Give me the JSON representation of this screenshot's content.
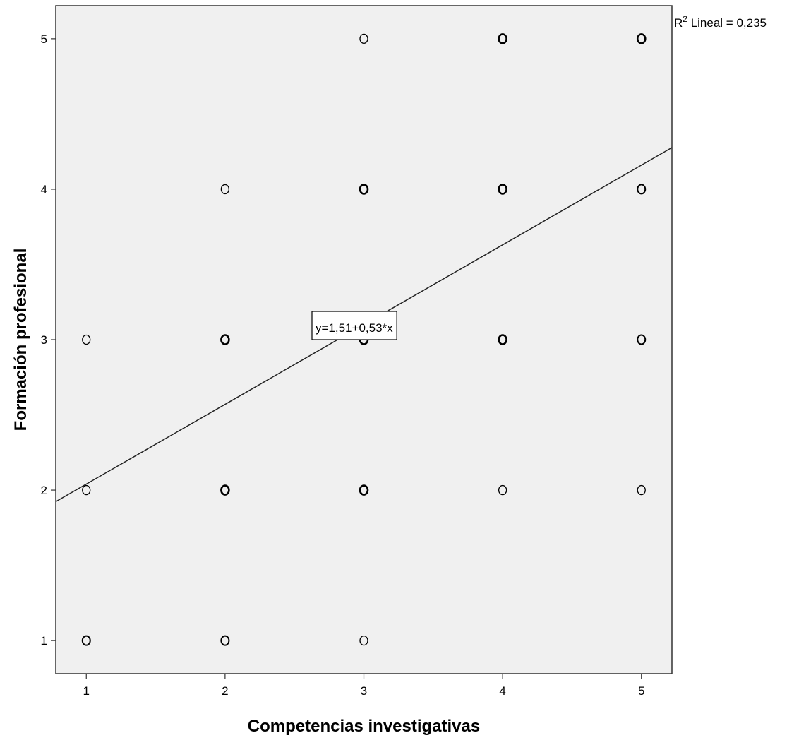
{
  "chart_data": {
    "type": "scatter",
    "title": "",
    "xlabel": "Competencias investigativas",
    "ylabel": "Formación profesional",
    "xlim": [
      0.78,
      5.22
    ],
    "ylim": [
      0.78,
      5.22
    ],
    "x_ticks": [
      "1",
      "2",
      "3",
      "4",
      "5"
    ],
    "y_ticks": [
      "1",
      "2",
      "3",
      "4",
      "5"
    ],
    "grid": false,
    "background": "#f0f0f0",
    "point_color": "#000000",
    "points": [
      {
        "x": 1,
        "y": 1,
        "n": 2
      },
      {
        "x": 1,
        "y": 2,
        "n": 1
      },
      {
        "x": 1,
        "y": 3,
        "n": 1
      },
      {
        "x": 2,
        "y": 1,
        "n": 2
      },
      {
        "x": 2,
        "y": 2,
        "n": 3
      },
      {
        "x": 2,
        "y": 3,
        "n": 3
      },
      {
        "x": 2,
        "y": 4,
        "n": 1
      },
      {
        "x": 3,
        "y": 1,
        "n": 1
      },
      {
        "x": 3,
        "y": 2,
        "n": 3
      },
      {
        "x": 3,
        "y": 3,
        "n": 3
      },
      {
        "x": 3,
        "y": 4,
        "n": 3
      },
      {
        "x": 3,
        "y": 5,
        "n": 1
      },
      {
        "x": 4,
        "y": 2,
        "n": 1
      },
      {
        "x": 4,
        "y": 3,
        "n": 3
      },
      {
        "x": 4,
        "y": 4,
        "n": 3
      },
      {
        "x": 4,
        "y": 5,
        "n": 3
      },
      {
        "x": 5,
        "y": 2,
        "n": 1
      },
      {
        "x": 5,
        "y": 3,
        "n": 2
      },
      {
        "x": 5,
        "y": 4,
        "n": 2
      },
      {
        "x": 5,
        "y": 5,
        "n": 3
      }
    ],
    "fit_line": {
      "intercept": 1.51,
      "slope": 0.53,
      "equation_label": "y=1,51+0,53*x"
    },
    "r2_label_prefix": "R",
    "r2_label_sup": "2",
    "r2_label_suffix": " Lineal = 0,235"
  }
}
